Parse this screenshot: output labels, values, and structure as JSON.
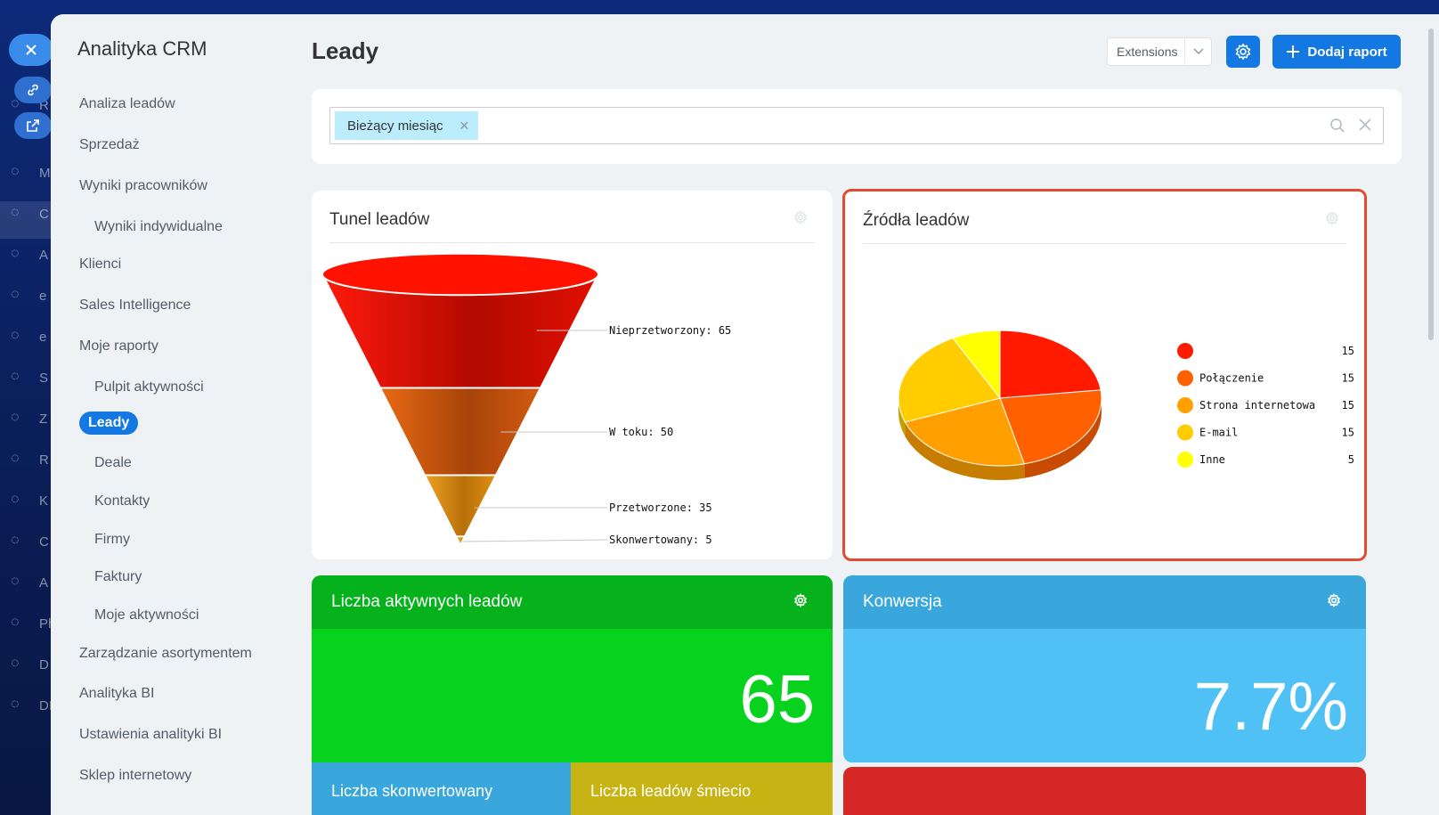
{
  "app": {
    "rail_labels": [
      "R",
      "M",
      "C",
      "A",
      "e",
      "e",
      "S",
      "Z",
      "R",
      "K",
      "C",
      "A",
      "Ph",
      "D",
      "DI"
    ]
  },
  "sidebar": {
    "title": "Analityka CRM",
    "items": [
      {
        "label": "Analiza leadów",
        "level": 1
      },
      {
        "label": "Sprzedaż",
        "level": 1
      },
      {
        "label": "Wyniki pracowników",
        "level": 1
      },
      {
        "label": "Wyniki indywidualne",
        "level": 2
      },
      {
        "label": "Klienci",
        "level": 1
      },
      {
        "label": "Sales Intelligence",
        "level": 1
      },
      {
        "label": "Moje raporty",
        "level": 1
      },
      {
        "label": "Pulpit aktywności",
        "level": 2
      },
      {
        "label": "Leady",
        "level": 2,
        "active": true
      },
      {
        "label": "Deale",
        "level": 2
      },
      {
        "label": "Kontakty",
        "level": 2
      },
      {
        "label": "Firmy",
        "level": 2
      },
      {
        "label": "Faktury",
        "level": 2
      },
      {
        "label": "Moje aktywności",
        "level": 2
      },
      {
        "label": "Zarządzanie asortymentem",
        "level": 1
      },
      {
        "label": "Analityka BI",
        "level": 1
      },
      {
        "label": "Ustawienia analityki BI",
        "level": 1
      },
      {
        "label": "Sklep internetowy",
        "level": 1
      }
    ]
  },
  "header": {
    "title": "Leady",
    "extensions_label": "Extensions",
    "add_report_label": "Dodaj raport"
  },
  "filter": {
    "tag": "Bieżący miesiąc"
  },
  "funnel_widget": {
    "title": "Tunel leadów"
  },
  "sources_widget": {
    "title": "Źródła leadów"
  },
  "active_leads": {
    "title": "Liczba aktywnych leadów",
    "value": "65"
  },
  "conversion": {
    "title": "Konwersja",
    "value": "7.7%"
  },
  "bottom_tiles": {
    "converted": "Liczba skonwertowany",
    "junk": "Liczba leadów śmiecio"
  },
  "colors": {
    "accent": "#1478e3",
    "highlight_border": "#e04d32"
  },
  "chart_data": [
    {
      "type": "funnel",
      "title": "Tunel leadów",
      "categories": [
        "Nieprzetworzony",
        "W toku",
        "Przetworzone",
        "Skonwertowany"
      ],
      "values": [
        65,
        50,
        35,
        5
      ],
      "labels": [
        "Nieprzetworzony: 65",
        "W toku: 50",
        "Przetworzone: 35",
        "Skonwertowany: 5"
      ],
      "colors": [
        "#e31b0c",
        "#c9530f",
        "#d9900f",
        "#e8a10a"
      ]
    },
    {
      "type": "pie",
      "title": "Źródła leadów",
      "categories": [
        "",
        "Połączenie",
        "Strona internetowa",
        "E-mail",
        "Inne"
      ],
      "values": [
        15,
        15,
        15,
        15,
        5
      ],
      "value_labels": [
        "15",
        "15",
        "15",
        "15",
        "5"
      ],
      "colors": [
        "#ff1a00",
        "#ff6000",
        "#ffa000",
        "#ffcc00",
        "#ffff00"
      ],
      "legend_position": "right"
    }
  ]
}
